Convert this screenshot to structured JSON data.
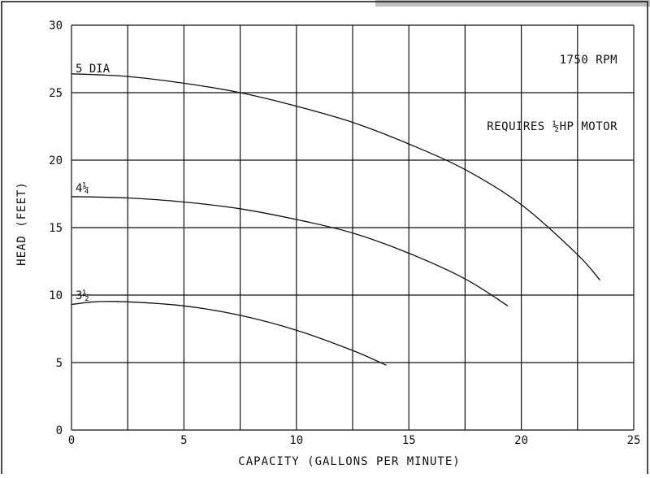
{
  "chart_data": {
    "type": "line",
    "title": "",
    "xlabel": "CAPACITY (GALLONS PER MINUTE)",
    "ylabel": "HEAD (FEET)",
    "xlim": [
      0,
      25
    ],
    "ylim": [
      0,
      30
    ],
    "x_ticks": [
      0,
      5,
      10,
      15,
      20,
      25
    ],
    "y_ticks": [
      0,
      5,
      10,
      15,
      20,
      25,
      30
    ],
    "x_tick_labels": [
      "0",
      "5",
      "10",
      "15",
      "20",
      "25"
    ],
    "y_tick_labels": [
      "0",
      "5",
      "10",
      "15",
      "20",
      "25",
      "30"
    ],
    "x_grid": [
      0,
      2.5,
      5,
      7.5,
      10,
      12.5,
      15,
      17.5,
      20,
      22.5,
      25
    ],
    "y_grid": [
      0,
      5,
      10,
      15,
      20,
      25,
      30
    ],
    "grid": true,
    "annotations": [
      "1750 RPM",
      "REQUIRES ½HP MOTOR"
    ],
    "series": [
      {
        "name": "5 DIA",
        "x": [
          0,
          2.5,
          5,
          7.5,
          10,
          12.5,
          15,
          17.5,
          20,
          22.5,
          23.5
        ],
        "y": [
          26.4,
          26.2,
          25.7,
          25.0,
          24.0,
          22.8,
          21.2,
          19.3,
          16.7,
          13.0,
          11.1
        ]
      },
      {
        "name": "4¼",
        "x": [
          0,
          2.5,
          5,
          7.5,
          10,
          12.5,
          15,
          17.5,
          19.4
        ],
        "y": [
          17.3,
          17.2,
          16.9,
          16.4,
          15.6,
          14.6,
          13.1,
          11.2,
          9.2
        ]
      },
      {
        "name": "3½",
        "x": [
          0,
          1,
          2.5,
          5,
          7.5,
          10,
          12.5,
          14
        ],
        "y": [
          9.3,
          9.5,
          9.5,
          9.2,
          8.5,
          7.4,
          5.9,
          4.8
        ]
      }
    ]
  }
}
